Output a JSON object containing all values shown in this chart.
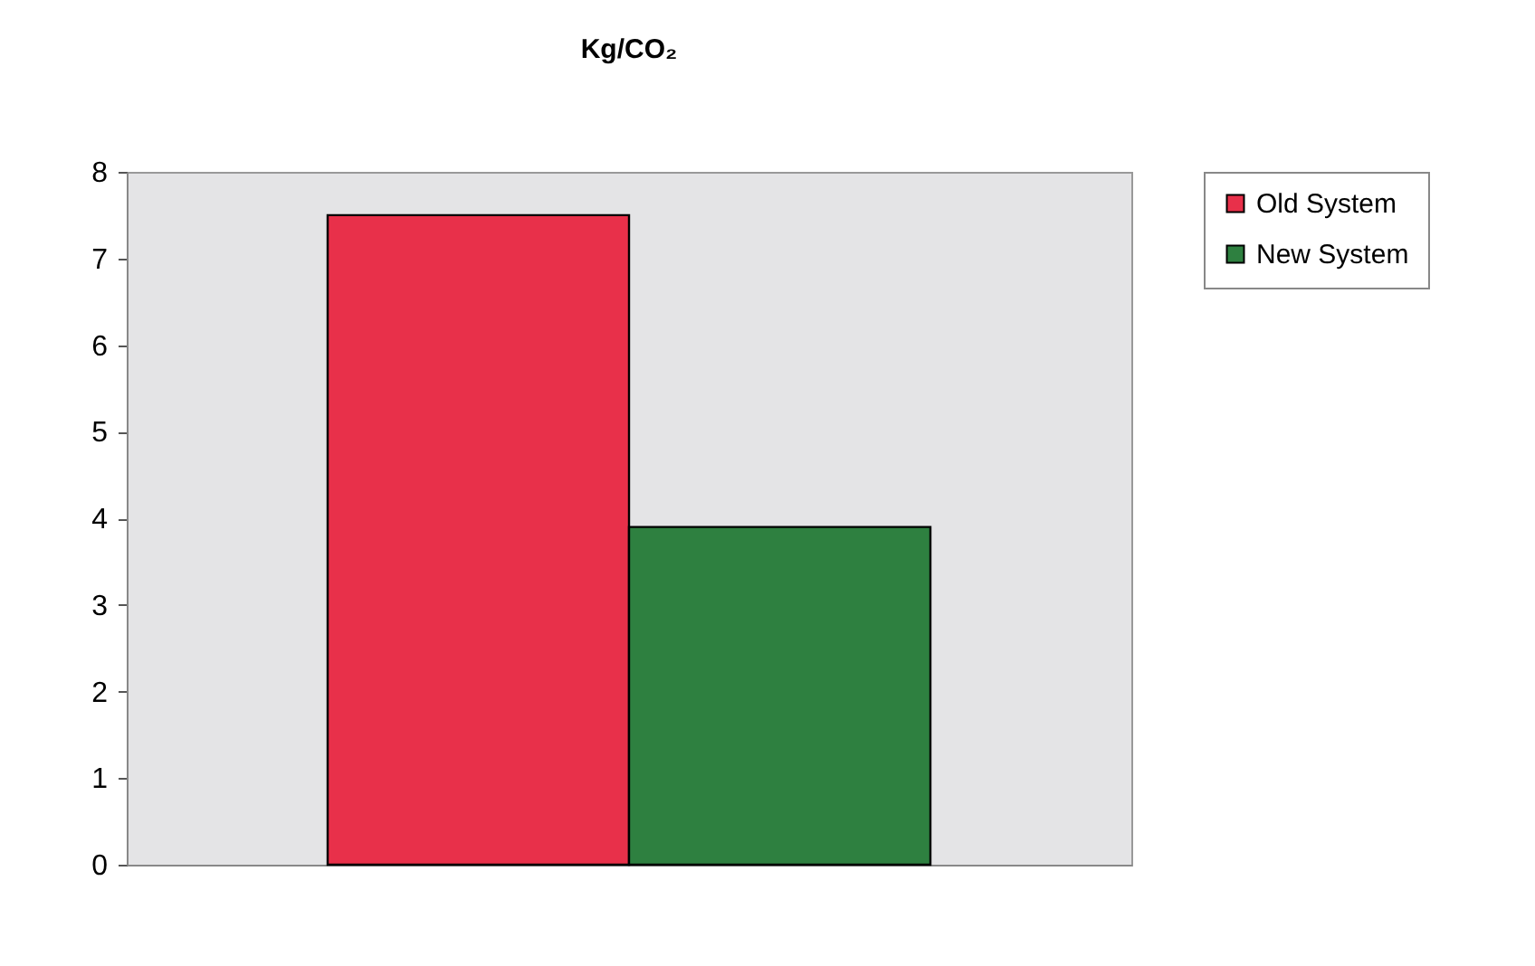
{
  "chart_data": {
    "type": "bar",
    "title": "Kg/CO₂",
    "categories": [
      null
    ],
    "series": [
      {
        "name": "Old System",
        "color": "#e8304a",
        "values": [
          7.5
        ]
      },
      {
        "name": "New System",
        "color": "#2e8040",
        "values": [
          3.9
        ]
      }
    ],
    "ylim": [
      0,
      8
    ],
    "yticks": [
      0,
      1,
      2,
      3,
      4,
      5,
      6,
      7,
      8
    ],
    "grid": false,
    "legend": "right",
    "tick_labels": "y"
  }
}
